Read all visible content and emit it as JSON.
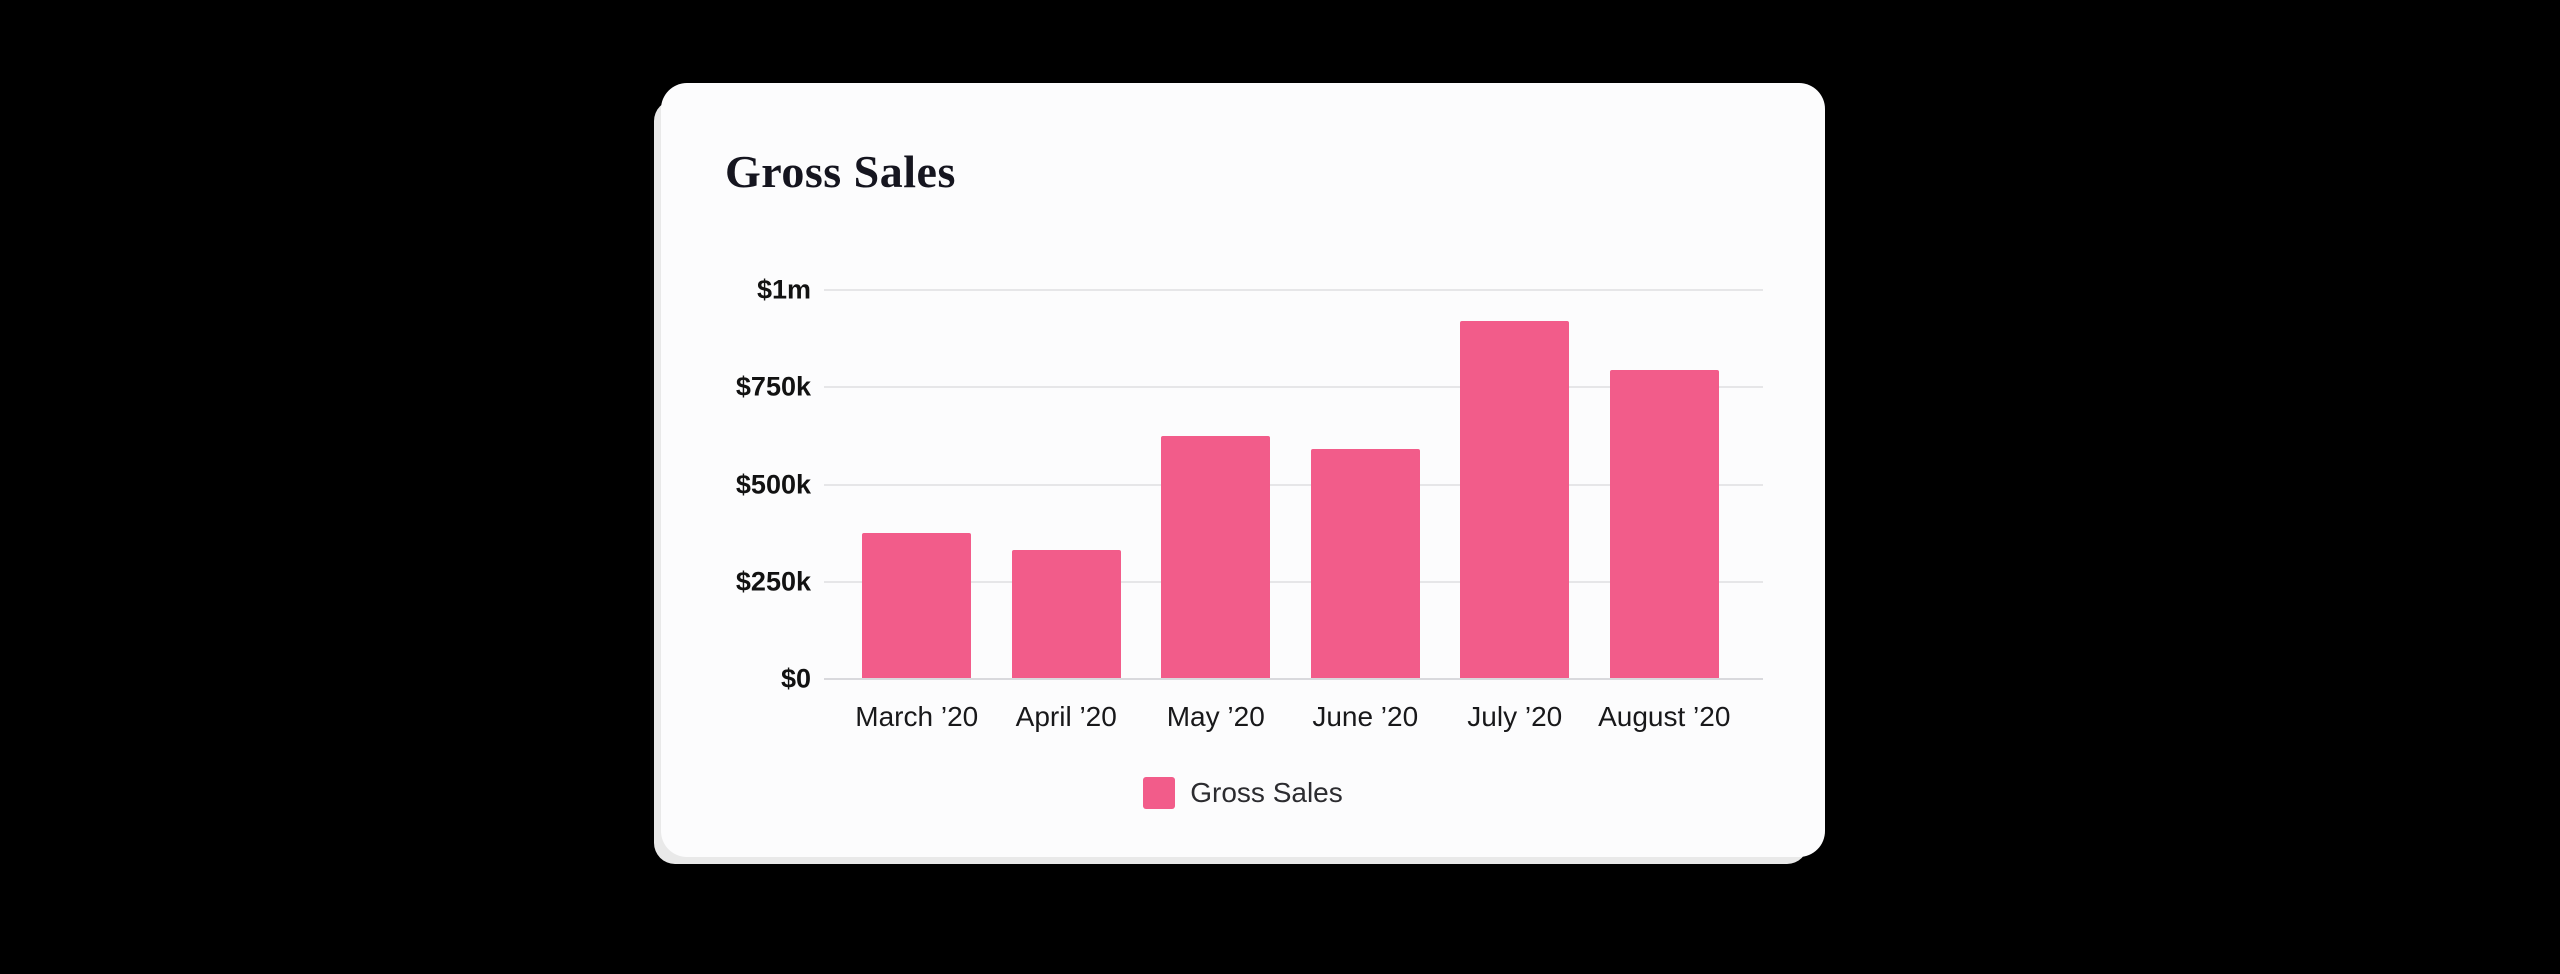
{
  "card": {
    "title": "Gross Sales"
  },
  "chart_data": {
    "type": "bar",
    "title": "Gross Sales",
    "categories": [
      "March ’20",
      "April ’20",
      "May ’20",
      "June ’20",
      "July ’20",
      "August ’20"
    ],
    "values": [
      375000,
      330000,
      625000,
      590000,
      920000,
      795000
    ],
    "series_name": "Gross Sales",
    "legend": "Gross Sales",
    "legend_position": "bottom",
    "grid": true,
    "ylim": [
      0,
      1000000
    ],
    "y_ticks": [
      {
        "label": "$1m",
        "value": 1000000
      },
      {
        "label": "$750k",
        "value": 750000
      },
      {
        "label": "$500k",
        "value": 500000
      },
      {
        "label": "$250k",
        "value": 250000
      },
      {
        "label": "$0",
        "value": 0
      }
    ],
    "xlabel": "",
    "ylabel": "",
    "bar_color": "#f25c8a"
  },
  "colors": {
    "background": "#000000",
    "card": "#fcfcfd",
    "gridline": "#e6e6e8",
    "text": "#121212"
  }
}
